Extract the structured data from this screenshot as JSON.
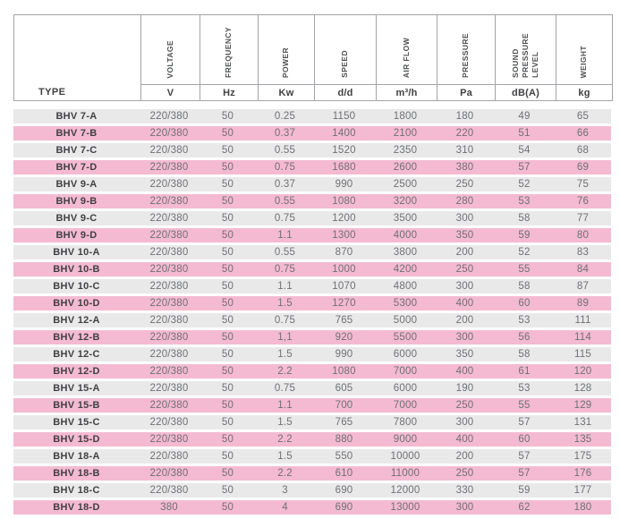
{
  "colors": {
    "row_gray": "#e9e9ea",
    "row_pink": "#f4bad1",
    "border": "#a2a4a7",
    "text_dark": "#414042",
    "text_mid": "#4d4e50",
    "text_value": "#6f7073"
  },
  "table": {
    "columns": [
      {
        "label": "TYPE",
        "unit": ""
      },
      {
        "label": "VOLTAGE",
        "unit": "V"
      },
      {
        "label": "FREQUENCY",
        "unit": "Hz"
      },
      {
        "label": "POWER",
        "unit": "Kw"
      },
      {
        "label": "SPEED",
        "unit": "d/d"
      },
      {
        "label": "AIR FLOW",
        "unit": "m³/h"
      },
      {
        "label": "PRESSURE",
        "unit": "Pa"
      },
      {
        "label": "SOUND\nPRESSURE\nLEVEL",
        "unit": "dB(A)"
      },
      {
        "label": "WEIGHT",
        "unit": "kg"
      }
    ],
    "rows": [
      {
        "type": "BHV 7-A",
        "values": [
          "220/380",
          "50",
          "0.25",
          "1150",
          "1800",
          "180",
          "49",
          "65"
        ]
      },
      {
        "type": "BHV 7-B",
        "values": [
          "220/380",
          "50",
          "0.37",
          "1400",
          "2100",
          "220",
          "51",
          "66"
        ]
      },
      {
        "type": "BHV 7-C",
        "values": [
          "220/380",
          "50",
          "0.55",
          "1520",
          "2350",
          "310",
          "54",
          "68"
        ]
      },
      {
        "type": "BHV 7-D",
        "values": [
          "220/380",
          "50",
          "0.75",
          "1680",
          "2600",
          "380",
          "57",
          "69"
        ]
      },
      {
        "type": "BHV 9-A",
        "values": [
          "220/380",
          "50",
          "0.37",
          "990",
          "2500",
          "250",
          "52",
          "75"
        ]
      },
      {
        "type": "BHV 9-B",
        "values": [
          "220/380",
          "50",
          "0.55",
          "1080",
          "3200",
          "280",
          "53",
          "76"
        ]
      },
      {
        "type": "BHV 9-C",
        "values": [
          "220/380",
          "50",
          "0.75",
          "1200",
          "3500",
          "300",
          "58",
          "77"
        ]
      },
      {
        "type": "BHV 9-D",
        "values": [
          "220/380",
          "50",
          "1.1",
          "1300",
          "4000",
          "350",
          "59",
          "80"
        ]
      },
      {
        "type": "BHV 10-A",
        "values": [
          "220/380",
          "50",
          "0.55",
          "870",
          "3800",
          "200",
          "52",
          "83"
        ]
      },
      {
        "type": "BHV 10-B",
        "values": [
          "220/380",
          "50",
          "0.75",
          "1000",
          "4200",
          "250",
          "55",
          "84"
        ]
      },
      {
        "type": "BHV 10-C",
        "values": [
          "220/380",
          "50",
          "1.1",
          "1070",
          "4800",
          "300",
          "58",
          "87"
        ]
      },
      {
        "type": "BHV 10-D",
        "values": [
          "220/380",
          "50",
          "1.5",
          "1270",
          "5300",
          "400",
          "60",
          "89"
        ]
      },
      {
        "type": "BHV 12-A",
        "values": [
          "220/380",
          "50",
          "0.75",
          "765",
          "5000",
          "200",
          "53",
          "111"
        ]
      },
      {
        "type": "BHV 12-B",
        "values": [
          "220/380",
          "50",
          "1,1",
          "920",
          "5500",
          "300",
          "56",
          "114"
        ]
      },
      {
        "type": "BHV 12-C",
        "values": [
          "220/380",
          "50",
          "1.5",
          "990",
          "6000",
          "350",
          "58",
          "115"
        ]
      },
      {
        "type": "BHV 12-D",
        "values": [
          "220/380",
          "50",
          "2.2",
          "1080",
          "7000",
          "400",
          "61",
          "120"
        ]
      },
      {
        "type": "BHV 15-A",
        "values": [
          "220/380",
          "50",
          "0.75",
          "605",
          "6000",
          "190",
          "53",
          "128"
        ]
      },
      {
        "type": "BHV 15-B",
        "values": [
          "220/380",
          "50",
          "1.1",
          "700",
          "7000",
          "250",
          "55",
          "129"
        ]
      },
      {
        "type": "BHV 15-C",
        "values": [
          "220/380",
          "50",
          "1.5",
          "765",
          "7800",
          "300",
          "57",
          "131"
        ]
      },
      {
        "type": "BHV 15-D",
        "values": [
          "220/380",
          "50",
          "2.2",
          "880",
          "9000",
          "400",
          "60",
          "135"
        ]
      },
      {
        "type": "BHV 18-A",
        "values": [
          "220/380",
          "50",
          "1.5",
          "550",
          "10000",
          "200",
          "57",
          "175"
        ]
      },
      {
        "type": "BHV 18-B",
        "values": [
          "220/380",
          "50",
          "2.2",
          "610",
          "11000",
          "250",
          "57",
          "176"
        ]
      },
      {
        "type": "BHV 18-C",
        "values": [
          "220/380",
          "50",
          "3",
          "690",
          "12000",
          "330",
          "59",
          "177"
        ]
      },
      {
        "type": "BHV 18-D",
        "values": [
          "380",
          "50",
          "4",
          "690",
          "13000",
          "300",
          "62",
          "180"
        ]
      }
    ]
  }
}
